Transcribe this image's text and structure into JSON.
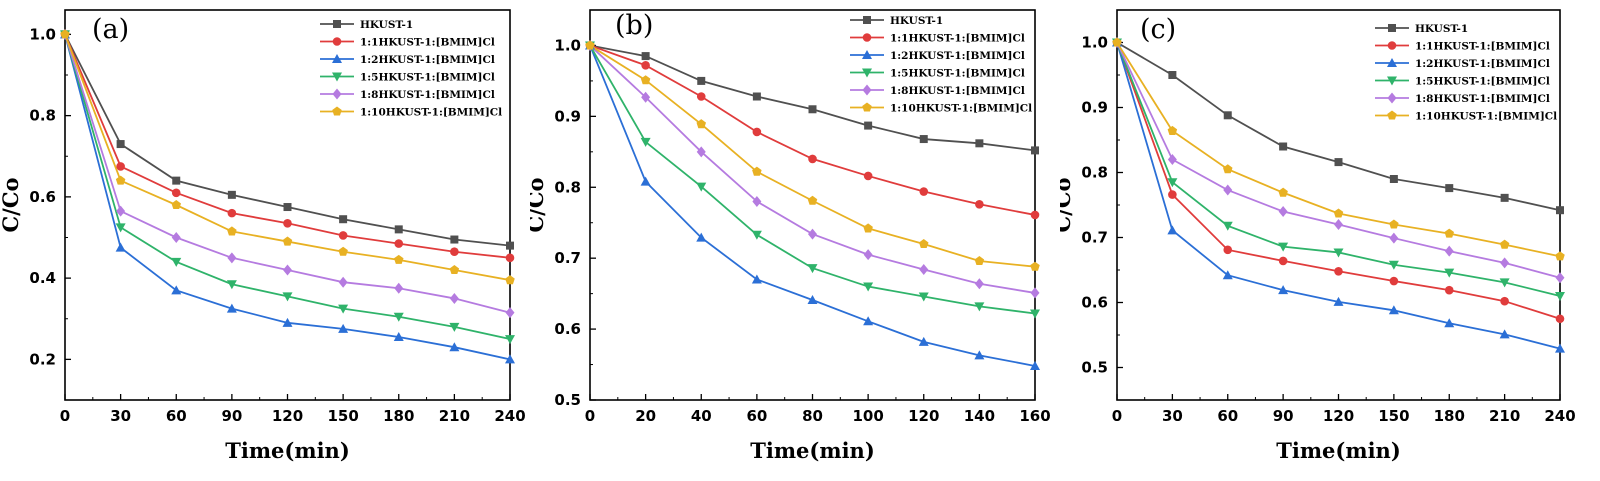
{
  "figure": {
    "panels": [
      "a",
      "b",
      "c"
    ]
  },
  "chart_data": [
    {
      "type": "line",
      "panel_label": "(a)",
      "xlabel": "Time(min)",
      "ylabel": "C/Co",
      "x": [
        0,
        30,
        60,
        90,
        120,
        150,
        180,
        210,
        240
      ],
      "xlim": [
        0,
        240
      ],
      "ylim": [
        0.1,
        1.06
      ],
      "xticks": [
        0,
        30,
        60,
        90,
        120,
        150,
        180,
        210,
        240
      ],
      "yticks": [
        0.2,
        0.4,
        0.6,
        0.8,
        1.0
      ],
      "ytick_labels": [
        "0.2",
        "0.4",
        "0.6",
        "0.8",
        "1.0"
      ],
      "legend_position": "top-right",
      "series": [
        {
          "name": "HKUST-1",
          "color": "#505050",
          "marker": "square",
          "values": [
            1.0,
            0.73,
            0.64,
            0.605,
            0.575,
            0.545,
            0.52,
            0.495,
            0.48
          ]
        },
        {
          "name": "1:1HKUST-1:[BMIM]Cl",
          "color": "#e03c3c",
          "marker": "circle",
          "values": [
            1.0,
            0.675,
            0.61,
            0.56,
            0.535,
            0.505,
            0.485,
            0.465,
            0.45
          ]
        },
        {
          "name": "1:2HKUST-1:[BMIM]Cl",
          "color": "#2b6fd6",
          "marker": "triangle-up",
          "values": [
            1.0,
            0.475,
            0.37,
            0.325,
            0.29,
            0.275,
            0.255,
            0.23,
            0.2
          ]
        },
        {
          "name": "1:5HKUST-1:[BMIM]Cl",
          "color": "#2fb36a",
          "marker": "triangle-down",
          "values": [
            1.0,
            0.525,
            0.44,
            0.385,
            0.355,
            0.325,
            0.305,
            0.28,
            0.25
          ]
        },
        {
          "name": "1:8HKUST-1:[BMIM]Cl",
          "color": "#b57be0",
          "marker": "diamond",
          "values": [
            1.0,
            0.565,
            0.5,
            0.45,
            0.42,
            0.39,
            0.375,
            0.35,
            0.315
          ]
        },
        {
          "name": "1:10HKUST-1:[BMIM]Cl",
          "color": "#e8b123",
          "marker": "pentagon",
          "values": [
            1.0,
            0.64,
            0.58,
            0.515,
            0.49,
            0.465,
            0.445,
            0.42,
            0.395
          ]
        }
      ]
    },
    {
      "type": "line",
      "panel_label": "(b)",
      "xlabel": "Time(min)",
      "ylabel": "C/Co",
      "x": [
        0,
        20,
        40,
        60,
        80,
        100,
        120,
        140,
        160
      ],
      "xlim": [
        0,
        160
      ],
      "ylim": [
        0.5,
        1.05
      ],
      "xticks": [
        0,
        20,
        40,
        60,
        80,
        100,
        120,
        140,
        160
      ],
      "yticks": [
        0.5,
        0.6,
        0.7,
        0.8,
        0.9,
        1.0
      ],
      "ytick_labels": [
        "0.5",
        "0.6",
        "0.7",
        "0.8",
        "0.9",
        "1.0"
      ],
      "legend_position": "top-right",
      "series": [
        {
          "name": "HKUST-1",
          "color": "#505050",
          "marker": "square",
          "values": [
            1.0,
            0.985,
            0.95,
            0.928,
            0.91,
            0.887,
            0.868,
            0.862,
            0.852
          ]
        },
        {
          "name": "1:1HKUST-1:[BMIM]Cl",
          "color": "#e03c3c",
          "marker": "circle",
          "values": [
            1.0,
            0.972,
            0.928,
            0.878,
            0.84,
            0.816,
            0.794,
            0.776,
            0.761
          ]
        },
        {
          "name": "1:2HKUST-1:[BMIM]Cl",
          "color": "#2b6fd6",
          "marker": "triangle-up",
          "values": [
            1.0,
            0.808,
            0.729,
            0.67,
            0.641,
            0.611,
            0.582,
            0.563,
            0.548
          ]
        },
        {
          "name": "1:5HKUST-1:[BMIM]Cl",
          "color": "#2fb36a",
          "marker": "triangle-down",
          "values": [
            1.0,
            0.864,
            0.801,
            0.733,
            0.686,
            0.66,
            0.646,
            0.632,
            0.622
          ]
        },
        {
          "name": "1:8HKUST-1:[BMIM]Cl",
          "color": "#b57be0",
          "marker": "diamond",
          "values": [
            1.0,
            0.927,
            0.85,
            0.78,
            0.734,
            0.705,
            0.684,
            0.664,
            0.651
          ]
        },
        {
          "name": "1:10HKUST-1:[BMIM]Cl",
          "color": "#e8b123",
          "marker": "pentagon",
          "values": [
            1.0,
            0.951,
            0.889,
            0.822,
            0.781,
            0.742,
            0.72,
            0.696,
            0.688
          ]
        }
      ]
    },
    {
      "type": "line",
      "panel_label": "(c)",
      "xlabel": "Time(min)",
      "ylabel": "C/Co",
      "x": [
        0,
        30,
        60,
        90,
        120,
        150,
        180,
        210,
        240
      ],
      "xlim": [
        0,
        240
      ],
      "ylim": [
        0.45,
        1.05
      ],
      "xticks": [
        0,
        30,
        60,
        90,
        120,
        150,
        180,
        210,
        240
      ],
      "yticks": [
        0.5,
        0.6,
        0.7,
        0.8,
        0.9,
        1.0
      ],
      "ytick_labels": [
        "0.5",
        "0.6",
        "0.7",
        "0.8",
        "0.9",
        "1.0"
      ],
      "legend_position": "top-right",
      "series": [
        {
          "name": "HKUST-1",
          "color": "#505050",
          "marker": "square",
          "values": [
            1.0,
            0.95,
            0.888,
            0.84,
            0.816,
            0.79,
            0.776,
            0.761,
            0.742
          ]
        },
        {
          "name": "1:1HKUST-1:[BMIM]Cl",
          "color": "#e03c3c",
          "marker": "circle",
          "values": [
            1.0,
            0.766,
            0.681,
            0.664,
            0.648,
            0.633,
            0.619,
            0.602,
            0.575
          ]
        },
        {
          "name": "1:2HKUST-1:[BMIM]Cl",
          "color": "#2b6fd6",
          "marker": "triangle-up",
          "values": [
            1.0,
            0.711,
            0.642,
            0.619,
            0.601,
            0.588,
            0.568,
            0.551,
            0.529
          ]
        },
        {
          "name": "1:5HKUST-1:[BMIM]Cl",
          "color": "#2fb36a",
          "marker": "triangle-down",
          "values": [
            1.0,
            0.785,
            0.718,
            0.686,
            0.677,
            0.658,
            0.646,
            0.631,
            0.61
          ]
        },
        {
          "name": "1:8HKUST-1:[BMIM]Cl",
          "color": "#b57be0",
          "marker": "diamond",
          "values": [
            1.0,
            0.82,
            0.773,
            0.74,
            0.72,
            0.699,
            0.679,
            0.661,
            0.638
          ]
        },
        {
          "name": "1:10HKUST-1:[BMIM]Cl",
          "color": "#e8b123",
          "marker": "pentagon",
          "values": [
            1.0,
            0.864,
            0.805,
            0.769,
            0.737,
            0.72,
            0.706,
            0.689,
            0.671
          ]
        }
      ]
    }
  ]
}
